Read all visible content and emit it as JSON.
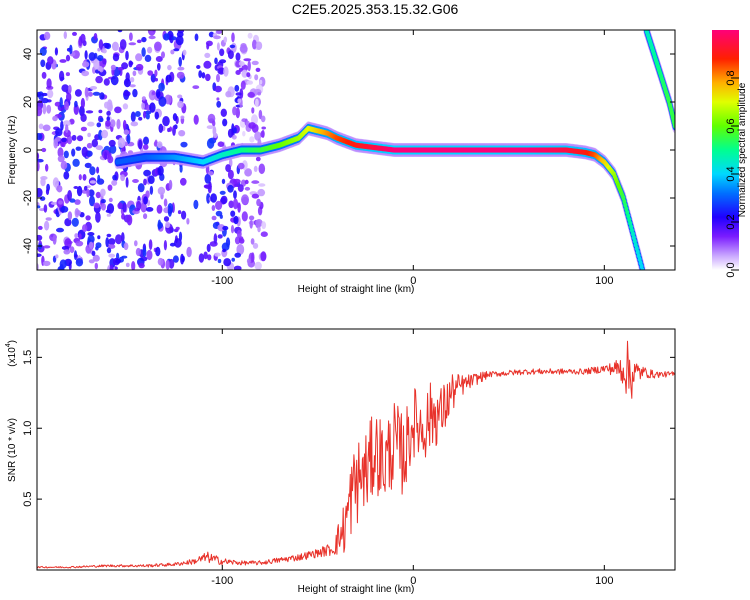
{
  "title": "C2E5.2025.353.15.32.G06",
  "chart_data": [
    {
      "type": "heatmap",
      "name": "spectrogram",
      "xlabel": "Height of straight line (km)",
      "ylabel": "Frequency (Hz)",
      "xlim": [
        -197,
        137
      ],
      "ylim": [
        -50,
        50
      ],
      "xticks": [
        -100,
        0,
        100
      ],
      "xtick_labels": [
        "-100",
        "0",
        "100"
      ],
      "yticks": [
        -40,
        -20,
        0,
        20,
        40
      ],
      "ytick_labels": [
        "-40",
        "-20",
        "0",
        "20",
        "40"
      ],
      "colorbar": {
        "label": "Normalized spectral amplitude",
        "range": [
          0,
          1
        ],
        "ticks": [
          0.0,
          0.2,
          0.4,
          0.6,
          0.8
        ],
        "tick_labels": [
          "0.0",
          "0.2",
          "0.4",
          "0.6",
          "0.8"
        ],
        "colors": [
          "#ffffff",
          "#b388ff",
          "#6a00ff",
          "#0000ff",
          "#00c8ff",
          "#00ff80",
          "#80ff00",
          "#ffff00",
          "#ff8000",
          "#ff0000",
          "#ff0080"
        ]
      },
      "ridge": {
        "x": [
          -155,
          -140,
          -125,
          -110,
          -100,
          -90,
          -80,
          -70,
          -60,
          -55,
          -50,
          -45,
          -40,
          -30,
          -20,
          -10,
          0,
          20,
          40,
          60,
          80,
          90,
          95,
          100,
          105,
          110,
          115,
          120
        ],
        "y": [
          -5,
          -3,
          -3,
          -5,
          -2,
          0,
          0,
          2,
          5,
          9,
          8,
          7,
          5,
          2,
          1,
          0,
          0,
          0,
          0,
          0,
          0,
          -1,
          -2,
          -5,
          -10,
          -20,
          -35,
          -50
        ],
        "amplitude": [
          0.3,
          0.3,
          0.35,
          0.4,
          0.45,
          0.5,
          0.55,
          0.6,
          0.65,
          0.7,
          0.75,
          0.8,
          0.85,
          0.9,
          0.95,
          1.0,
          1.0,
          1.0,
          1.0,
          1.0,
          0.95,
          0.9,
          0.85,
          0.75,
          0.65,
          0.55,
          0.45,
          0.4
        ]
      },
      "aliased_ridge": {
        "x": [
          122,
          128,
          134,
          137
        ],
        "y": [
          50,
          35,
          20,
          10
        ],
        "amplitude": [
          0.45,
          0.5,
          0.55,
          0.55
        ]
      },
      "noise_region": {
        "x_start": -197,
        "x_end": -78,
        "mean_amplitude": 0.2
      }
    },
    {
      "type": "line",
      "name": "snr",
      "xlabel": "Height of straight line (km)",
      "ylabel": "SNR (10 * v/v)",
      "scale_label": "(x10",
      "scale_exponent": "4",
      "xlim": [
        -197,
        137
      ],
      "ylim": [
        0,
        1.7
      ],
      "xticks": [
        -100,
        0,
        100
      ],
      "xtick_labels": [
        "-100",
        "0",
        "100"
      ],
      "yticks": [
        0.5,
        1.0,
        1.5
      ],
      "ytick_labels": [
        "0.5",
        "1.0",
        "1.5"
      ],
      "color": "#e8322a",
      "series": [
        {
          "name": "SNR",
          "x": [
            -197,
            -180,
            -160,
            -140,
            -125,
            -115,
            -108,
            -100,
            -90,
            -80,
            -70,
            -60,
            -50,
            -42,
            -36,
            -32,
            -28,
            -24,
            -20,
            -15,
            -10,
            -5,
            0,
            5,
            10,
            15,
            20,
            25,
            30,
            35,
            40,
            50,
            60,
            70,
            80,
            90,
            100,
            105,
            110,
            113,
            116,
            120,
            125,
            130,
            137
          ],
          "values": [
            0.02,
            0.02,
            0.03,
            0.03,
            0.04,
            0.06,
            0.09,
            0.06,
            0.05,
            0.05,
            0.07,
            0.09,
            0.12,
            0.15,
            0.3,
            0.55,
            0.65,
            0.7,
            0.85,
            0.75,
            0.9,
            0.8,
            1.05,
            1.0,
            1.1,
            1.1,
            1.25,
            1.3,
            1.33,
            1.36,
            1.38,
            1.39,
            1.4,
            1.4,
            1.4,
            1.4,
            1.42,
            1.42,
            1.42,
            1.4,
            1.38,
            1.4,
            1.38,
            1.38,
            1.38
          ],
          "jitter": [
            0.005,
            0.006,
            0.008,
            0.01,
            0.012,
            0.02,
            0.04,
            0.025,
            0.015,
            0.015,
            0.02,
            0.025,
            0.03,
            0.05,
            0.2,
            0.3,
            0.3,
            0.3,
            0.3,
            0.3,
            0.3,
            0.3,
            0.25,
            0.25,
            0.25,
            0.2,
            0.15,
            0.08,
            0.05,
            0.04,
            0.02,
            0.02,
            0.02,
            0.02,
            0.02,
            0.02,
            0.03,
            0.05,
            0.12,
            0.25,
            0.12,
            0.04,
            0.03,
            0.02,
            0.02
          ]
        }
      ]
    }
  ]
}
